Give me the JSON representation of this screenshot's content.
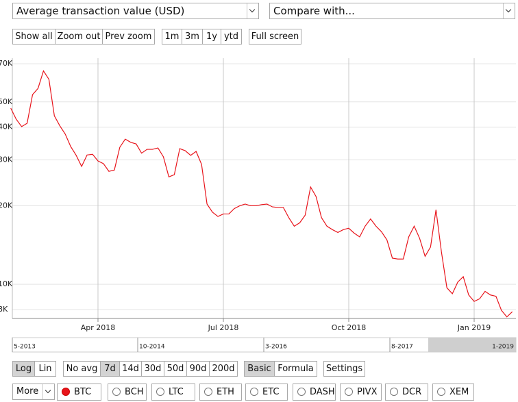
{
  "chart_data": {
    "type": "line",
    "log": true,
    "grid": true,
    "color": "#e8141b",
    "categories": [
      null,
      null,
      null,
      null,
      null,
      null,
      null,
      null,
      null,
      null,
      null,
      null,
      null,
      null,
      null,
      null,
      "Apr 2018",
      null,
      null,
      null,
      null,
      null,
      null,
      null,
      null,
      null,
      null,
      null,
      null,
      null,
      null,
      null,
      null,
      null,
      null,
      null,
      null,
      null,
      null,
      "Jul 2018",
      null,
      null,
      null,
      null,
      null,
      null,
      null,
      null,
      null,
      null,
      null,
      null,
      null,
      null,
      null,
      null,
      null,
      null,
      null,
      null,
      null,
      null,
      "Oct 2018",
      null,
      null,
      null,
      null,
      null,
      null,
      null,
      null,
      null,
      null,
      null,
      null,
      null,
      null,
      null,
      null,
      null,
      null,
      null,
      null,
      null,
      null,
      "Jan 2019",
      null,
      null,
      null,
      null,
      null,
      null,
      null
    ],
    "values": [
      47300,
      42900,
      40200,
      41400,
      53300,
      56300,
      65700,
      61000,
      44200,
      40500,
      37600,
      33700,
      31200,
      28300,
      31300,
      31500,
      29700,
      29000,
      27100,
      27400,
      33500,
      36000,
      35000,
      34500,
      31800,
      32900,
      32900,
      33300,
      30800,
      25800,
      26300,
      33100,
      32500,
      31200,
      32300,
      28800,
      20300,
      18900,
      18200,
      18600,
      18600,
      19500,
      20000,
      20300,
      20000,
      20000,
      20200,
      20300,
      19800,
      19700,
      19700,
      18000,
      16700,
      17200,
      18400,
      23600,
      21700,
      18000,
      16700,
      16200,
      15800,
      16200,
      16400,
      15700,
      15200,
      16700,
      17800,
      16700,
      15900,
      14800,
      12600,
      12500,
      12500,
      15200,
      16700,
      15000,
      12800,
      13900,
      19300,
      13300,
      9700,
      9200,
      10200,
      10700,
      9100,
      8600,
      8800,
      9400,
      9100,
      9000,
      7950,
      7500,
      7850
    ],
    "ylim": [
      7400,
      73500
    ],
    "yticks": [
      {
        "value": 8000,
        "label": "8K"
      },
      {
        "value": 10000,
        "label": "10K"
      },
      {
        "value": 20000,
        "label": "20K"
      },
      {
        "value": 30000,
        "label": "30K"
      },
      {
        "value": 40000,
        "label": "40K"
      },
      {
        "value": 50000,
        "label": "50K"
      },
      {
        "value": 70000,
        "label": "70K"
      }
    ]
  },
  "navigator": {
    "labels": [
      "5-2013",
      "10-2014",
      "3-2016",
      "8-2017",
      "1-2019"
    ]
  },
  "controls": {
    "selects": [
      "Average transaction value (USD)",
      "Compare with..."
    ],
    "zoom_buttons": [
      [
        "Show all",
        "Zoom out",
        "Prev zoom"
      ],
      [
        "1m",
        "3m",
        "1y",
        "ytd"
      ],
      [
        "Full screen"
      ]
    ],
    "scale_buttons": [
      "Log",
      "Lin"
    ],
    "avg_buttons": [
      "No avg",
      "7d",
      "14d",
      "30d",
      "50d",
      "90d",
      "200d"
    ],
    "mode_buttons": [
      "Basic",
      "Formula"
    ],
    "settings_button": "Settings",
    "more": "More",
    "coins": [
      "BTC",
      "BCH",
      "LTC",
      "ETH",
      "ETC",
      "DASH",
      "PIVX",
      "DCR",
      "XEM"
    ]
  }
}
